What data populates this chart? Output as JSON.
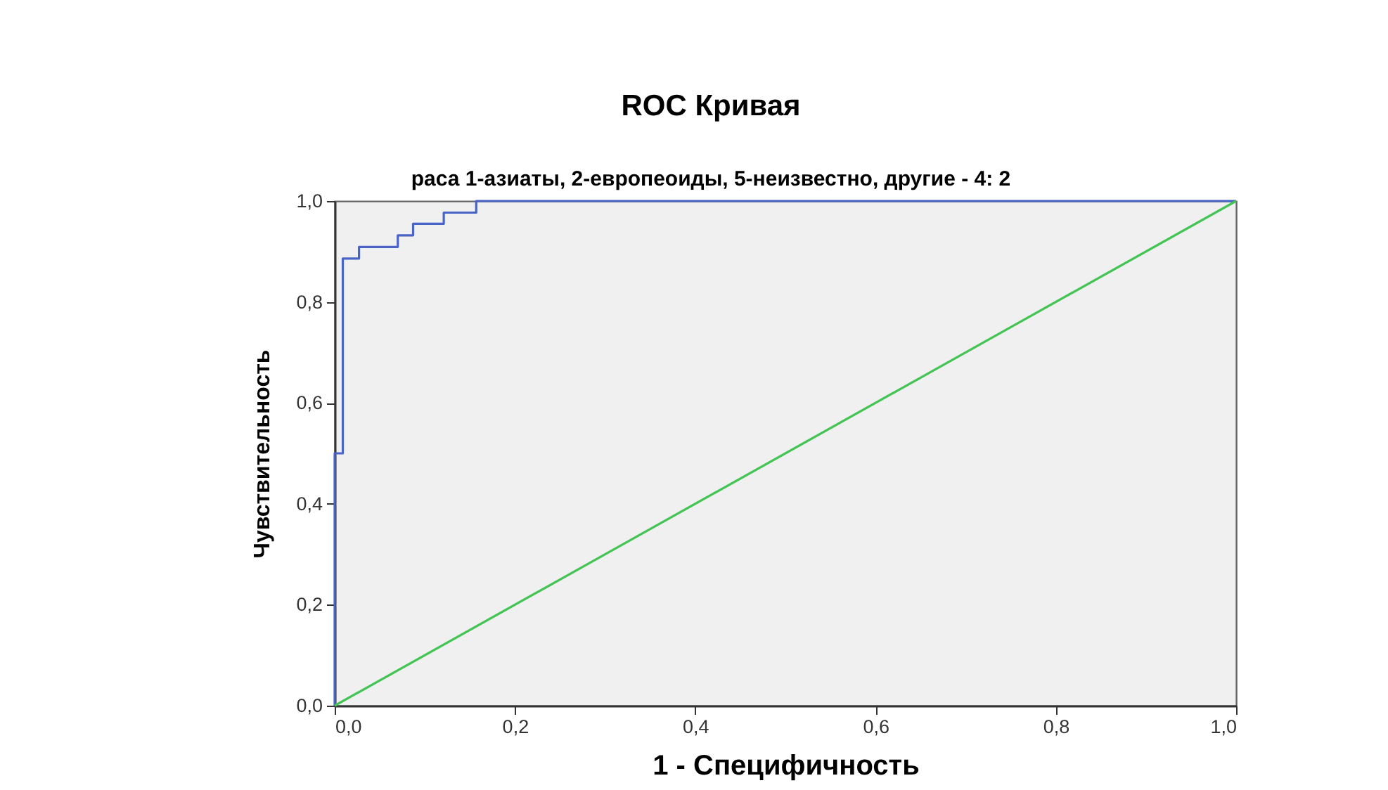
{
  "chart_data": {
    "type": "line",
    "title": "ROC Кривая",
    "subtitle": "раса 1-азиаты, 2-европеоиды,  5-неизвестно, другие - 4: 2",
    "xlabel": "1 - Специфичность",
    "ylabel": "Чувствительность",
    "xlim": [
      0,
      1
    ],
    "ylim": [
      0,
      1
    ],
    "xticks": [
      {
        "value": 0,
        "label": "0,0"
      },
      {
        "value": 0.2,
        "label": "0,2"
      },
      {
        "value": 0.4,
        "label": "0,4"
      },
      {
        "value": 0.6,
        "label": "0,6"
      },
      {
        "value": 0.8,
        "label": "0,8"
      },
      {
        "value": 1,
        "label": "1,0"
      }
    ],
    "yticks": [
      {
        "value": 0,
        "label": "0,0"
      },
      {
        "value": 0.2,
        "label": "0,2"
      },
      {
        "value": 0.4,
        "label": "0,4"
      },
      {
        "value": 0.6,
        "label": "0,6"
      },
      {
        "value": 0.8,
        "label": "0,8"
      },
      {
        "value": 1,
        "label": "1,0"
      }
    ],
    "grid": false,
    "series": [
      {
        "type": "step",
        "color": "#4a63c6",
        "x": [
          0,
          0,
          0.009,
          0.027,
          0.07,
          0.087,
          0.121,
          0.157,
          1
        ],
        "values": [
          0,
          0.5,
          0.886,
          0.909,
          0.932,
          0.955,
          0.977,
          1,
          1
        ]
      },
      {
        "color": "#44c454",
        "x": [
          0,
          1
        ],
        "values": [
          0,
          1
        ]
      }
    ]
  }
}
